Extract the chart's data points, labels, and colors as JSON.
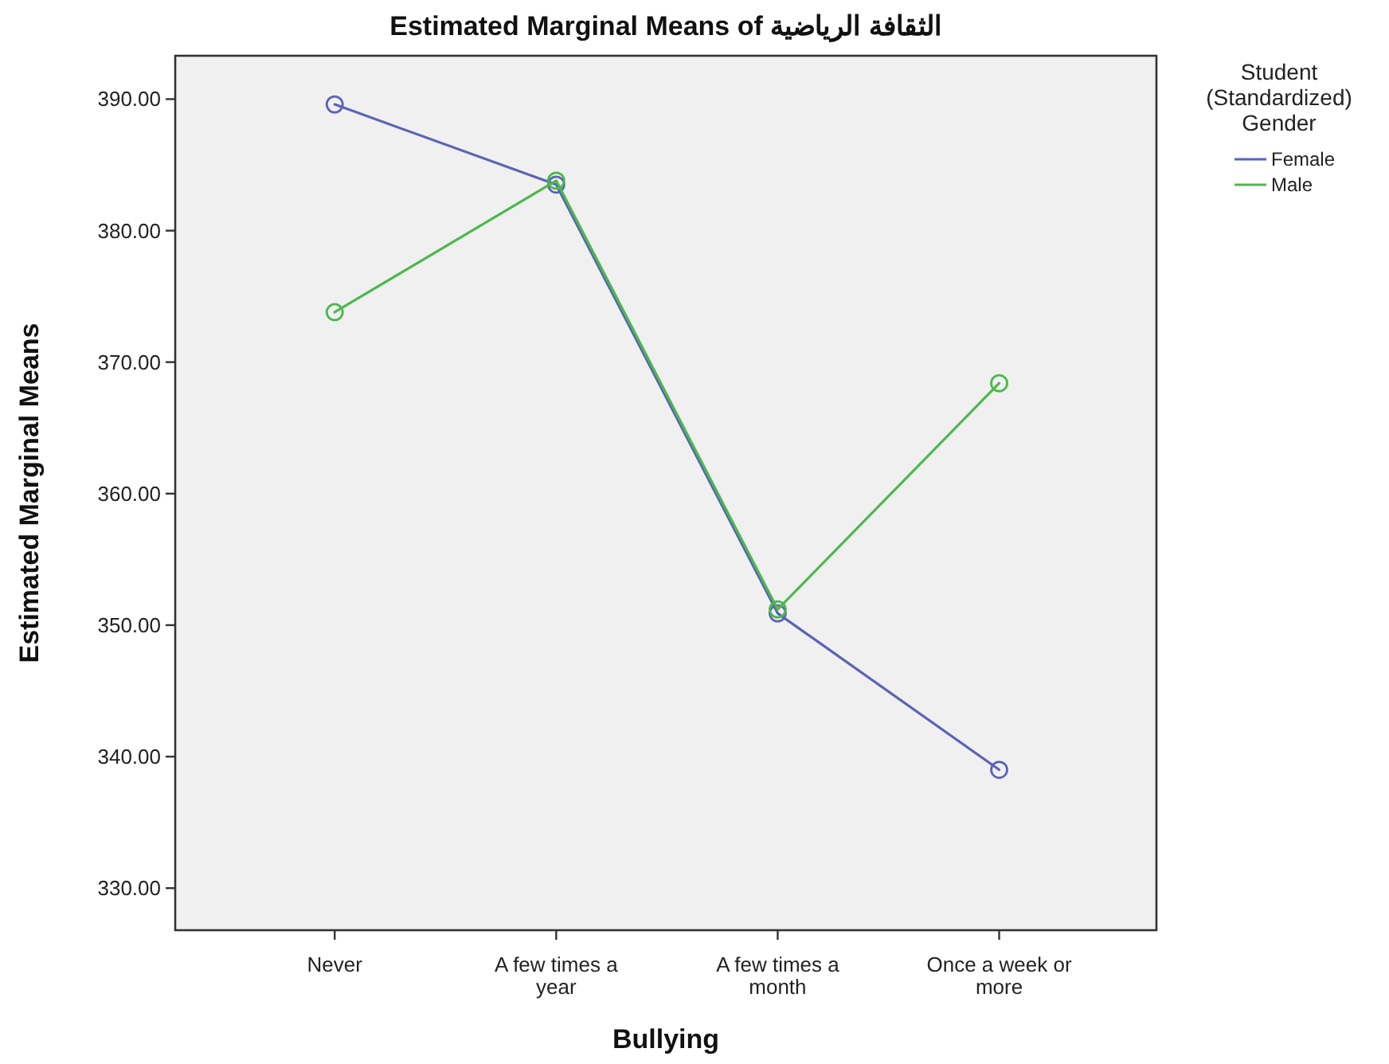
{
  "chart_data": {
    "type": "line",
    "title": "Estimated Marginal Means of الثقافة الرياضية",
    "xlabel": "Bullying",
    "ylabel": "Estimated Marginal Means",
    "legend_title": "Student (Standardized) Gender",
    "categories": [
      "Never",
      "A few times a year",
      "A few times a month",
      "Once a week or more"
    ],
    "series": [
      {
        "name": "Female",
        "color": "#5b63b5",
        "values": [
          389.6,
          383.5,
          350.9,
          339.0
        ]
      },
      {
        "name": "Male",
        "color": "#4cb84c",
        "values": [
          373.8,
          383.8,
          351.2,
          368.4
        ]
      }
    ],
    "ylim": [
      326.8,
      393.3
    ],
    "yticks": [
      {
        "value": 330,
        "label": "330.00"
      },
      {
        "value": 340,
        "label": "340.00"
      },
      {
        "value": 350,
        "label": "350.00"
      },
      {
        "value": 360,
        "label": "360.00"
      },
      {
        "value": 370,
        "label": "370.00"
      },
      {
        "value": 380,
        "label": "380.00"
      },
      {
        "value": 390,
        "label": "390.00"
      }
    ],
    "marker": "circle",
    "line_style": "solid",
    "grid": false,
    "legend": "top right"
  }
}
